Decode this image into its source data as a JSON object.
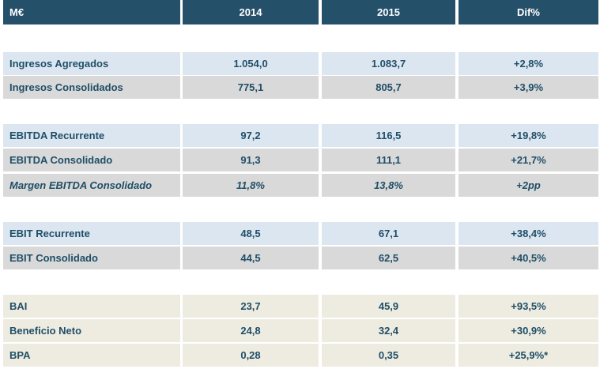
{
  "header": [
    "M€",
    "2014",
    "2015",
    "Dif%"
  ],
  "rows": [
    [
      "Ingresos Agregados",
      "1.054,0",
      "1.083,7",
      "+2,8%"
    ],
    [
      "Ingresos Consolidados",
      "775,1",
      "805,7",
      "+3,9%"
    ],
    [
      "EBITDA Recurrente",
      "97,2",
      "116,5",
      "+19,8%"
    ],
    [
      "EBITDA Consolidado",
      "91,3",
      "111,1",
      "+21,7%"
    ],
    [
      "Margen EBITDA Consolidado",
      "11,8%",
      "13,8%",
      "+2pp"
    ],
    [
      "EBIT Recurrente",
      "48,5",
      "67,1",
      "+38,4%"
    ],
    [
      "EBIT Consolidado",
      "44,5",
      "62,5",
      "+40,5%"
    ],
    [
      "BAI",
      "23,7",
      "45,9",
      "+93,5%"
    ],
    [
      "Beneficio Neto",
      "24,8",
      "32,4",
      "+30,9%"
    ],
    [
      "BPA",
      "0,28",
      "0,35",
      "+25,9%*"
    ]
  ]
}
